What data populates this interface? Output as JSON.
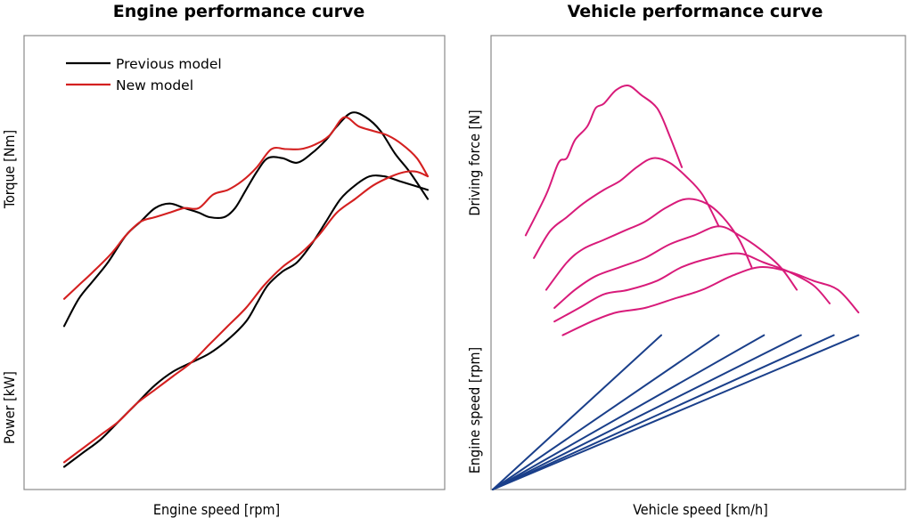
{
  "chart_data": [
    {
      "type": "line",
      "title": "Engine performance curve",
      "xlabel": "Engine speed [rpm]",
      "ylabel_top": "Torque [Nm]",
      "ylabel_bottom": "Power [kW]",
      "legend_position": "top-left",
      "grid": false,
      "x_ticks": false,
      "y_ticks": false,
      "colors": {
        "previous": "#000000",
        "new": "#d42020"
      },
      "series": [
        {
          "name": "Previous model",
          "quantity": "torque",
          "color": "#000000",
          "points": [
            [
              0.0,
              0.36
            ],
            [
              0.04,
              0.42
            ],
            [
              0.08,
              0.46
            ],
            [
              0.12,
              0.5
            ],
            [
              0.17,
              0.56
            ],
            [
              0.21,
              0.59
            ],
            [
              0.25,
              0.62
            ],
            [
              0.29,
              0.63
            ],
            [
              0.33,
              0.62
            ],
            [
              0.37,
              0.61
            ],
            [
              0.4,
              0.6
            ],
            [
              0.44,
              0.6
            ],
            [
              0.47,
              0.62
            ],
            [
              0.5,
              0.66
            ],
            [
              0.53,
              0.7
            ],
            [
              0.56,
              0.73
            ],
            [
              0.6,
              0.73
            ],
            [
              0.64,
              0.72
            ],
            [
              0.68,
              0.74
            ],
            [
              0.72,
              0.77
            ],
            [
              0.75,
              0.8
            ],
            [
              0.79,
              0.83
            ],
            [
              0.83,
              0.82
            ],
            [
              0.87,
              0.79
            ],
            [
              0.91,
              0.74
            ],
            [
              0.95,
              0.7
            ],
            [
              1.0,
              0.64
            ]
          ]
        },
        {
          "name": "New model",
          "quantity": "torque",
          "color": "#d42020",
          "points": [
            [
              0.0,
              0.42
            ],
            [
              0.04,
              0.45
            ],
            [
              0.08,
              0.48
            ],
            [
              0.13,
              0.52
            ],
            [
              0.17,
              0.56
            ],
            [
              0.21,
              0.59
            ],
            [
              0.25,
              0.6
            ],
            [
              0.29,
              0.61
            ],
            [
              0.33,
              0.62
            ],
            [
              0.37,
              0.62
            ],
            [
              0.41,
              0.65
            ],
            [
              0.45,
              0.66
            ],
            [
              0.49,
              0.68
            ],
            [
              0.53,
              0.71
            ],
            [
              0.57,
              0.75
            ],
            [
              0.61,
              0.75
            ],
            [
              0.65,
              0.75
            ],
            [
              0.69,
              0.76
            ],
            [
              0.73,
              0.78
            ],
            [
              0.77,
              0.82
            ],
            [
              0.81,
              0.8
            ],
            [
              0.85,
              0.79
            ],
            [
              0.89,
              0.78
            ],
            [
              0.93,
              0.76
            ],
            [
              0.97,
              0.73
            ],
            [
              1.0,
              0.69
            ]
          ]
        },
        {
          "name": "Previous model",
          "quantity": "power",
          "color": "#000000",
          "points": [
            [
              0.0,
              0.05
            ],
            [
              0.05,
              0.08
            ],
            [
              0.1,
              0.11
            ],
            [
              0.15,
              0.15
            ],
            [
              0.2,
              0.19
            ],
            [
              0.25,
              0.23
            ],
            [
              0.3,
              0.26
            ],
            [
              0.35,
              0.28
            ],
            [
              0.4,
              0.3
            ],
            [
              0.45,
              0.33
            ],
            [
              0.5,
              0.37
            ],
            [
              0.53,
              0.41
            ],
            [
              0.56,
              0.45
            ],
            [
              0.6,
              0.48
            ],
            [
              0.64,
              0.5
            ],
            [
              0.68,
              0.54
            ],
            [
              0.72,
              0.59
            ],
            [
              0.76,
              0.64
            ],
            [
              0.8,
              0.67
            ],
            [
              0.84,
              0.69
            ],
            [
              0.88,
              0.69
            ],
            [
              0.92,
              0.68
            ],
            [
              0.96,
              0.67
            ],
            [
              1.0,
              0.66
            ]
          ]
        },
        {
          "name": "New model",
          "quantity": "power",
          "color": "#d42020",
          "points": [
            [
              0.0,
              0.06
            ],
            [
              0.05,
              0.09
            ],
            [
              0.1,
              0.12
            ],
            [
              0.15,
              0.15
            ],
            [
              0.2,
              0.19
            ],
            [
              0.25,
              0.22
            ],
            [
              0.3,
              0.25
            ],
            [
              0.35,
              0.28
            ],
            [
              0.4,
              0.32
            ],
            [
              0.45,
              0.36
            ],
            [
              0.5,
              0.4
            ],
            [
              0.55,
              0.45
            ],
            [
              0.6,
              0.49
            ],
            [
              0.65,
              0.52
            ],
            [
              0.7,
              0.56
            ],
            [
              0.75,
              0.61
            ],
            [
              0.8,
              0.64
            ],
            [
              0.85,
              0.67
            ],
            [
              0.9,
              0.69
            ],
            [
              0.94,
              0.7
            ],
            [
              0.97,
              0.7
            ],
            [
              1.0,
              0.69
            ]
          ]
        }
      ]
    },
    {
      "type": "line",
      "title": "Vehicle performance curve",
      "xlabel": "Vehicle speed [km/h]",
      "ylabel_top": "Driving force [N]",
      "ylabel_bottom": "Engine speed [rpm]",
      "grid": false,
      "x_ticks": false,
      "y_ticks": false,
      "colors": {
        "driving_force": "#d81b7a",
        "engine_speed": "#1a3f8a"
      },
      "driving_force_curves": [
        {
          "gear": 1,
          "points": [
            [
              0.08,
              0.56
            ],
            [
              0.13,
              0.65
            ],
            [
              0.16,
              0.72
            ],
            [
              0.18,
              0.73
            ],
            [
              0.2,
              0.77
            ],
            [
              0.23,
              0.8
            ],
            [
              0.25,
              0.84
            ],
            [
              0.27,
              0.85
            ],
            [
              0.3,
              0.88
            ],
            [
              0.33,
              0.89
            ],
            [
              0.36,
              0.87
            ],
            [
              0.4,
              0.84
            ],
            [
              0.43,
              0.78
            ],
            [
              0.46,
              0.71
            ]
          ]
        },
        {
          "gear": 2,
          "points": [
            [
              0.1,
              0.51
            ],
            [
              0.14,
              0.57
            ],
            [
              0.18,
              0.6
            ],
            [
              0.22,
              0.63
            ],
            [
              0.27,
              0.66
            ],
            [
              0.31,
              0.68
            ],
            [
              0.35,
              0.71
            ],
            [
              0.39,
              0.73
            ],
            [
              0.43,
              0.72
            ],
            [
              0.47,
              0.69
            ],
            [
              0.51,
              0.65
            ],
            [
              0.55,
              0.58
            ]
          ]
        },
        {
          "gear": 3,
          "points": [
            [
              0.13,
              0.44
            ],
            [
              0.18,
              0.5
            ],
            [
              0.22,
              0.53
            ],
            [
              0.27,
              0.55
            ],
            [
              0.32,
              0.57
            ],
            [
              0.37,
              0.59
            ],
            [
              0.42,
              0.62
            ],
            [
              0.47,
              0.64
            ],
            [
              0.52,
              0.63
            ],
            [
              0.56,
              0.6
            ],
            [
              0.6,
              0.55
            ],
            [
              0.63,
              0.49
            ]
          ]
        },
        {
          "gear": 4,
          "points": [
            [
              0.15,
              0.4
            ],
            [
              0.2,
              0.44
            ],
            [
              0.25,
              0.47
            ],
            [
              0.31,
              0.49
            ],
            [
              0.37,
              0.51
            ],
            [
              0.43,
              0.54
            ],
            [
              0.49,
              0.56
            ],
            [
              0.55,
              0.58
            ],
            [
              0.6,
              0.56
            ],
            [
              0.65,
              0.53
            ],
            [
              0.7,
              0.49
            ],
            [
              0.74,
              0.44
            ]
          ]
        },
        {
          "gear": 5,
          "points": [
            [
              0.15,
              0.37
            ],
            [
              0.21,
              0.4
            ],
            [
              0.27,
              0.43
            ],
            [
              0.33,
              0.44
            ],
            [
              0.4,
              0.46
            ],
            [
              0.46,
              0.49
            ],
            [
              0.53,
              0.51
            ],
            [
              0.6,
              0.52
            ],
            [
              0.66,
              0.5
            ],
            [
              0.72,
              0.48
            ],
            [
              0.78,
              0.45
            ],
            [
              0.82,
              0.41
            ]
          ]
        },
        {
          "gear": 6,
          "points": [
            [
              0.17,
              0.34
            ],
            [
              0.24,
              0.37
            ],
            [
              0.3,
              0.39
            ],
            [
              0.37,
              0.4
            ],
            [
              0.44,
              0.42
            ],
            [
              0.51,
              0.44
            ],
            [
              0.58,
              0.47
            ],
            [
              0.65,
              0.49
            ],
            [
              0.72,
              0.48
            ],
            [
              0.78,
              0.46
            ],
            [
              0.84,
              0.44
            ],
            [
              0.89,
              0.39
            ]
          ]
        }
      ],
      "engine_speed_lines": [
        {
          "gear": 1,
          "end": [
            0.41,
            0.34
          ]
        },
        {
          "gear": 2,
          "end": [
            0.55,
            0.34
          ]
        },
        {
          "gear": 3,
          "end": [
            0.66,
            0.34
          ]
        },
        {
          "gear": 4,
          "end": [
            0.75,
            0.34
          ]
        },
        {
          "gear": 5,
          "end": [
            0.83,
            0.34
          ]
        },
        {
          "gear": 6,
          "end": [
            0.89,
            0.34
          ]
        }
      ]
    }
  ]
}
